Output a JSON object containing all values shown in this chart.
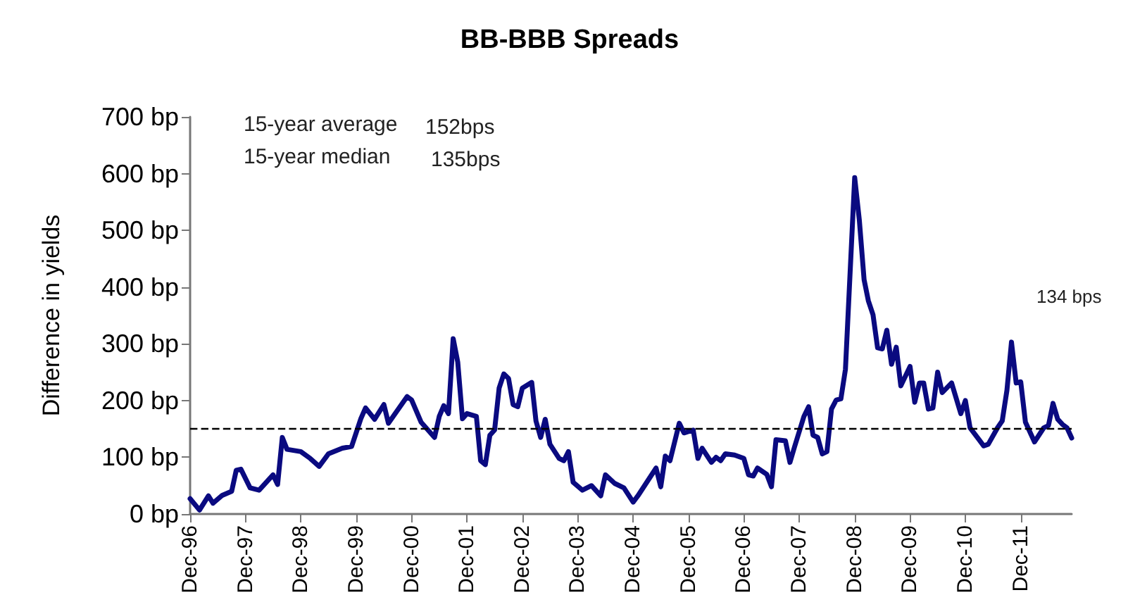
{
  "chart_data": {
    "type": "line",
    "title": "BB-BBB Spreads",
    "ylabel": "Difference in yields",
    "annotations": [
      "15-year average",
      "152bps",
      "15-year median",
      "135bps",
      "134 bps"
    ],
    "x": [
      "1996-12",
      "1997-02",
      "1997-04",
      "1997-05",
      "1997-07",
      "1997-09",
      "1997-10",
      "1997-11",
      "1998-01",
      "1998-03",
      "1998-06",
      "1998-07",
      "1998-08",
      "1998-09",
      "1998-12",
      "1999-02",
      "1999-04",
      "1999-06",
      "1999-09",
      "1999-11",
      "2000-01",
      "2000-02",
      "2000-04",
      "2000-06",
      "2000-07",
      "2000-11",
      "2000-12",
      "2001-02",
      "2001-05",
      "2001-06",
      "2001-07",
      "2001-08",
      "2001-09",
      "2001-10",
      "2001-11",
      "2001-12",
      "2002-02",
      "2002-03",
      "2002-04",
      "2002-05",
      "2002-06",
      "2002-07",
      "2002-08",
      "2002-09",
      "2002-10",
      "2002-11",
      "2002-12",
      "2003-02",
      "2003-03",
      "2003-04",
      "2003-05",
      "2003-06",
      "2003-08",
      "2003-09",
      "2003-10",
      "2003-11",
      "2004-01",
      "2004-03",
      "2004-05",
      "2004-06",
      "2004-08",
      "2004-10",
      "2004-12",
      "2005-01",
      "2005-05",
      "2005-06",
      "2005-07",
      "2005-08",
      "2005-10",
      "2005-11",
      "2006-01",
      "2006-02",
      "2006-03",
      "2006-05",
      "2006-06",
      "2006-07",
      "2006-08",
      "2006-10",
      "2006-12",
      "2007-01",
      "2007-02",
      "2007-03",
      "2007-05",
      "2007-06",
      "2007-07",
      "2007-09",
      "2007-10",
      "2007-11",
      "2008-01",
      "2008-02",
      "2008-03",
      "2008-04",
      "2008-05",
      "2008-06",
      "2008-07",
      "2008-08",
      "2008-09",
      "2008-10",
      "2008-12",
      "2009-01",
      "2009-02",
      "2009-03",
      "2009-04",
      "2009-05",
      "2009-06",
      "2009-07",
      "2009-08",
      "2009-09",
      "2009-10",
      "2009-12",
      "2010-01",
      "2010-02",
      "2010-03",
      "2010-04",
      "2010-05",
      "2010-06",
      "2010-07",
      "2010-09",
      "2010-11",
      "2010-12",
      "2011-01",
      "2011-03",
      "2011-04",
      "2011-05",
      "2011-07",
      "2011-08",
      "2011-09",
      "2011-10",
      "2011-11",
      "2011-12",
      "2012-01",
      "2012-03",
      "2012-05",
      "2012-06",
      "2012-07",
      "2012-08",
      "2012-09",
      "2012-10",
      "2012-11"
    ],
    "series": [
      {
        "color": "#0a0a80",
        "values": [
          27,
          7,
          32,
          19,
          33,
          40,
          77,
          79,
          46,
          42,
          69,
          52,
          135,
          114,
          110,
          98,
          84,
          106,
          116,
          119,
          168,
          187,
          167,
          193,
          160,
          207,
          201,
          162,
          135,
          172,
          191,
          177,
          309,
          268,
          168,
          177,
          172,
          94,
          87,
          139,
          148,
          222,
          247,
          239,
          193,
          189,
          222,
          232,
          164,
          135,
          167,
          123,
          98,
          94,
          110,
          56,
          42,
          50,
          32,
          69,
          54,
          46,
          21,
          32,
          81,
          48,
          102,
          94,
          160,
          143,
          148,
          98,
          116,
          91,
          100,
          94,
          106,
          104,
          98,
          69,
          67,
          81,
          70,
          48,
          131,
          129,
          91,
          119,
          172,
          189,
          139,
          135,
          106,
          110,
          185,
          201,
          203,
          255,
          593,
          517,
          413,
          376,
          351,
          293,
          291,
          324,
          264,
          294,
          226,
          260,
          197,
          231,
          231,
          185,
          187,
          250,
          214,
          231,
          177,
          200,
          152,
          131,
          120,
          123,
          152,
          164,
          218,
          303,
          231,
          233,
          162,
          127,
          152,
          156,
          195,
          167,
          158,
          152,
          134
        ]
      }
    ],
    "xlim": [
      "1996-12",
      "2012-11"
    ],
    "xticks": [
      {
        "value": "1996-12",
        "label": "Dec-96"
      },
      {
        "value": "1997-12",
        "label": "Dec-97"
      },
      {
        "value": "1998-12",
        "label": "Dec-98"
      },
      {
        "value": "1999-12",
        "label": "Dec-99"
      },
      {
        "value": "2000-12",
        "label": "Dec-00"
      },
      {
        "value": "2001-12",
        "label": "Dec-01"
      },
      {
        "value": "2002-12",
        "label": "Dec-02"
      },
      {
        "value": "2003-12",
        "label": "Dec-03"
      },
      {
        "value": "2004-12",
        "label": "Dec-04"
      },
      {
        "value": "2005-12",
        "label": "Dec-05"
      },
      {
        "value": "2006-12",
        "label": "Dec-06"
      },
      {
        "value": "2007-12",
        "label": "Dec-07"
      },
      {
        "value": "2008-12",
        "label": "Dec-08"
      },
      {
        "value": "2009-12",
        "label": "Dec-09"
      },
      {
        "value": "2010-12",
        "label": "Dec-10"
      },
      {
        "value": "2011-12",
        "label": "Dec-11"
      }
    ],
    "ylim": [
      0,
      700
    ],
    "yticks": [
      {
        "value": 0,
        "label": "0 bp"
      },
      {
        "value": 100,
        "label": "100 bp"
      },
      {
        "value": 200,
        "label": "200 bp"
      },
      {
        "value": 300,
        "label": "300 bp"
      },
      {
        "value": 400,
        "label": "400 bp"
      },
      {
        "value": 500,
        "label": "500 bp"
      },
      {
        "value": 600,
        "label": "600 bp"
      },
      {
        "value": 700,
        "label": "700 bp"
      }
    ],
    "ref_lines": [
      {
        "axis": "y",
        "value": 152,
        "color": "#000000",
        "line_style": "dashed"
      }
    ],
    "grid": false,
    "marker": "none",
    "line_style": "solid"
  }
}
